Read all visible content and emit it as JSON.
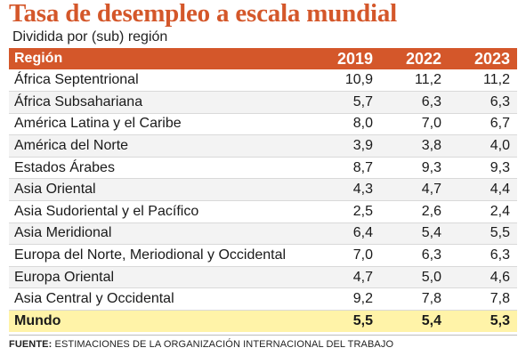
{
  "chart_data": {
    "type": "table",
    "title": "Tasa de desempleo a escala mundial",
    "subtitle": "Dividida por (sub) región",
    "columns": [
      "Región",
      "2019",
      "2022",
      "2023"
    ],
    "rows": [
      {
        "region": "África Septentrional",
        "values": [
          "10,9",
          "11,2",
          "11,2"
        ]
      },
      {
        "region": "África Subsahariana",
        "values": [
          "5,7",
          "6,3",
          "6,3"
        ]
      },
      {
        "region": "América Latina y el Caribe",
        "values": [
          "8,0",
          "7,0",
          "6,7"
        ]
      },
      {
        "region": "América del Norte",
        "values": [
          "3,9",
          "3,8",
          "4,0"
        ]
      },
      {
        "region": "Estados Árabes",
        "values": [
          "8,7",
          "9,3",
          "9,3"
        ]
      },
      {
        "region": "Asia Oriental",
        "values": [
          "4,3",
          "4,7",
          "4,4"
        ]
      },
      {
        "region": "Asia Sudoriental y el Pacífico",
        "values": [
          "2,5",
          "2,6",
          "2,4"
        ]
      },
      {
        "region": "Asia Meridional",
        "values": [
          "6,4",
          "5,4",
          "5,5"
        ]
      },
      {
        "region": "Europa del Norte, Meriodional y Occidental",
        "values": [
          "7,0",
          "6,3",
          "6,3"
        ]
      },
      {
        "region": "Europa Oriental",
        "values": [
          "4,7",
          "5,0",
          "4,6"
        ]
      },
      {
        "region": "Asia Central y Occidental",
        "values": [
          "9,2",
          "7,8",
          "7,8"
        ]
      }
    ],
    "total": {
      "region": "Mundo",
      "values": [
        "5,5",
        "5,4",
        "5,3"
      ]
    },
    "source_label": "FUENTE:",
    "source_text": "ESTIMACIONES DE LA ORGANIZACIÓN INTERNACIONAL DEL TRABAJO"
  },
  "colors": {
    "title": "#d4572a",
    "header_background": "#d4572a",
    "header_text": "#ffffff",
    "stripe_background": "#f3f3f3",
    "total_background": "#fff3a8"
  }
}
